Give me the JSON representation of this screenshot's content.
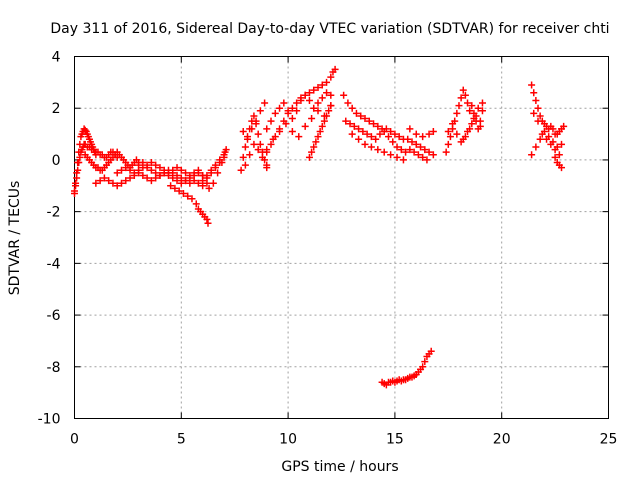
{
  "chart_data": {
    "type": "scatter",
    "title": "Day 311 of 2016, Sidereal Day-to-day VTEC variation (SDTVAR) for receiver chti",
    "xlabel": "GPS time / hours",
    "ylabel": "SDTVAR / TECUs",
    "xlim": [
      0,
      25
    ],
    "ylim": [
      -10,
      4
    ],
    "xticks": [
      0,
      5,
      10,
      15,
      20,
      25
    ],
    "yticks": [
      -10,
      -8,
      -6,
      -4,
      -2,
      0,
      2,
      4
    ],
    "xtick_labels": [
      "0",
      "5",
      "10",
      "15",
      "20",
      "25"
    ],
    "ytick_labels": [
      "-10",
      "-8",
      "-6",
      "-4",
      "-2",
      "0",
      "2",
      "4"
    ],
    "grid": true,
    "marker": "plus",
    "color": "#ff0000",
    "series": [
      {
        "name": "SDTVAR",
        "x": [
          0.0,
          0.05,
          0.1,
          0.15,
          0.2,
          0.25,
          0.3,
          0.35,
          0.4,
          0.45,
          0.5,
          0.55,
          0.6,
          0.65,
          0.7,
          0.75,
          0.8,
          0.85,
          0.9,
          0.95,
          1.0,
          0.0,
          0.05,
          0.1,
          0.15,
          0.2,
          0.25,
          0.3,
          0.35,
          0.4,
          0.45,
          0.5,
          0.6,
          0.7,
          0.8,
          0.9,
          1.0,
          1.1,
          1.2,
          1.3,
          1.4,
          1.5,
          1.6,
          1.7,
          1.8,
          1.9,
          2.0,
          0.5,
          0.6,
          0.7,
          0.8,
          0.9,
          1.0,
          1.1,
          1.2,
          1.3,
          1.4,
          1.5,
          1.6,
          1.7,
          1.8,
          1.9,
          2.0,
          2.1,
          2.2,
          2.3,
          2.4,
          2.5,
          2.6,
          2.7,
          2.8,
          2.9,
          3.0,
          1.0,
          1.2,
          1.4,
          1.6,
          1.8,
          2.0,
          2.2,
          2.4,
          2.6,
          2.8,
          3.0,
          3.2,
          3.4,
          3.6,
          3.8,
          4.0,
          4.2,
          4.4,
          4.6,
          4.8,
          5.0,
          5.2,
          5.4,
          5.6,
          5.8,
          6.0,
          6.2,
          6.4,
          6.6,
          6.8,
          7.0,
          2.0,
          2.2,
          2.4,
          2.6,
          2.8,
          3.0,
          3.2,
          3.4,
          3.6,
          3.8,
          4.0,
          4.2,
          4.4,
          4.6,
          4.8,
          5.0,
          5.2,
          5.4,
          5.6,
          5.8,
          6.0,
          3.0,
          3.2,
          3.4,
          3.6,
          3.8,
          4.0,
          4.2,
          4.4,
          4.6,
          4.8,
          5.0,
          5.2,
          5.4,
          5.6,
          5.8,
          6.0,
          6.2,
          4.5,
          4.7,
          4.9,
          5.1,
          5.3,
          5.5,
          5.7,
          5.8,
          5.9,
          6.0,
          6.1,
          6.2,
          6.25,
          6.0,
          6.2,
          6.4,
          6.6,
          6.8,
          7.0,
          7.1,
          6.3,
          6.5,
          6.7,
          6.9,
          7.05,
          7.9,
          8.0,
          8.1,
          8.2,
          8.3,
          8.4,
          8.5,
          8.6,
          8.7,
          8.8,
          8.9,
          9.0,
          7.8,
          8.0,
          8.2,
          8.4,
          8.6,
          8.8,
          9.0,
          7.9,
          8.1,
          8.3,
          8.5,
          8.7,
          8.9,
          9.0,
          9.2,
          9.4,
          9.6,
          9.8,
          10.0,
          10.2,
          10.4,
          10.6,
          10.8,
          11.0,
          11.2,
          11.4,
          11.6,
          11.8,
          12.0,
          12.1,
          12.2,
          9.0,
          9.2,
          9.4,
          9.6,
          9.8,
          10.0,
          10.2,
          10.4,
          10.6,
          10.8,
          11.0,
          11.2,
          11.4,
          11.6,
          11.8,
          12.0,
          9.0,
          9.3,
          9.6,
          9.9,
          10.2,
          10.5,
          10.8,
          11.1,
          11.4,
          11.7,
          12.0,
          11.0,
          11.1,
          11.2,
          11.3,
          11.4,
          11.5,
          11.6,
          11.7,
          11.8,
          11.9,
          12.0,
          12.6,
          12.8,
          13.0,
          13.2,
          13.4,
          13.6,
          13.8,
          14.0,
          14.2,
          14.4,
          14.6,
          14.8,
          15.0,
          15.2,
          15.4,
          15.6,
          15.8,
          16.0,
          16.2,
          16.4,
          16.6,
          16.8,
          12.7,
          12.9,
          13.1,
          13.3,
          13.5,
          13.7,
          13.9,
          14.1,
          14.3,
          14.5,
          14.7,
          14.9,
          15.1,
          15.3,
          15.5,
          15.7,
          15.9,
          16.1,
          16.3,
          16.5,
          13.0,
          13.3,
          13.6,
          13.9,
          14.2,
          14.5,
          14.8,
          15.1,
          15.4,
          15.7,
          16.0,
          16.3,
          16.6,
          16.8,
          14.4,
          14.5,
          14.6,
          14.7,
          14.8,
          14.9,
          15.0,
          15.1,
          15.2,
          15.3,
          15.4,
          15.5,
          15.6,
          15.7,
          15.8,
          15.9,
          16.0,
          16.1,
          16.2,
          16.3,
          16.4,
          16.5,
          16.6,
          16.7,
          17.4,
          17.5,
          17.6,
          17.7,
          17.8,
          17.9,
          18.0,
          18.1,
          18.2,
          18.3,
          18.4,
          18.5,
          18.6,
          18.7,
          18.8,
          18.9,
          19.0,
          19.1,
          17.5,
          17.7,
          17.9,
          18.1,
          18.3,
          18.5,
          18.7,
          18.9,
          19.1,
          18.2,
          18.4,
          18.6,
          18.8,
          19.0,
          21.4,
          21.5,
          21.6,
          21.7,
          21.8,
          21.9,
          22.0,
          22.1,
          22.2,
          22.3,
          22.4,
          22.5,
          22.6,
          22.7,
          22.8,
          22.9,
          21.4,
          21.6,
          21.8,
          22.0,
          22.2,
          22.4,
          22.6,
          22.8,
          21.5,
          21.7,
          21.9,
          22.1,
          22.3,
          22.5,
          22.7,
          22.5,
          22.6,
          22.7,
          22.8
        ],
        "y": [
          -1.2,
          -0.9,
          -0.5,
          -0.1,
          0.3,
          0.6,
          0.9,
          1.0,
          1.1,
          1.2,
          1.15,
          1.1,
          1.0,
          0.9,
          0.8,
          0.7,
          0.6,
          0.5,
          0.4,
          0.3,
          0.2,
          -1.3,
          -1.0,
          -0.7,
          -0.4,
          -0.1,
          0.1,
          0.3,
          0.4,
          0.5,
          0.6,
          0.6,
          0.5,
          0.5,
          0.4,
          0.4,
          0.3,
          0.3,
          0.2,
          0.2,
          0.1,
          0.1,
          0.2,
          0.3,
          0.3,
          0.2,
          0.1,
          0.2,
          0.1,
          0.0,
          -0.1,
          -0.2,
          -0.3,
          -0.3,
          -0.4,
          -0.4,
          -0.3,
          -0.2,
          -0.1,
          0.0,
          0.1,
          0.2,
          0.3,
          0.2,
          0.1,
          0.0,
          -0.1,
          -0.2,
          -0.3,
          -0.2,
          -0.1,
          0.0,
          -0.1,
          -0.9,
          -0.8,
          -0.7,
          -0.8,
          -0.9,
          -1.0,
          -0.9,
          -0.8,
          -0.7,
          -0.6,
          -0.5,
          -0.6,
          -0.7,
          -0.8,
          -0.7,
          -0.6,
          -0.5,
          -0.6,
          -0.7,
          -0.8,
          -0.9,
          -0.8,
          -0.7,
          -0.6,
          -0.5,
          -0.6,
          -0.7,
          -0.5,
          -0.3,
          -0.1,
          0.1,
          -0.5,
          -0.4,
          -0.3,
          -0.4,
          -0.5,
          -0.4,
          -0.3,
          -0.2,
          -0.1,
          -0.2,
          -0.3,
          -0.4,
          -0.5,
          -0.4,
          -0.3,
          -0.4,
          -0.5,
          -0.6,
          -0.5,
          -0.4,
          -0.6,
          -0.2,
          -0.1,
          -0.3,
          -0.4,
          -0.5,
          -0.6,
          -0.5,
          -0.4,
          -0.5,
          -0.6,
          -0.7,
          -0.8,
          -0.9,
          -0.8,
          -0.9,
          -1.0,
          -0.9,
          -1.0,
          -1.1,
          -1.2,
          -1.3,
          -1.4,
          -1.5,
          -1.7,
          -1.9,
          -2.0,
          -2.1,
          -2.2,
          -2.3,
          -2.45,
          -0.8,
          -0.6,
          -0.4,
          -0.2,
          0.0,
          0.2,
          0.4,
          -1.1,
          -0.9,
          -0.5,
          -0.1,
          0.3,
          0.1,
          0.5,
          0.9,
          1.2,
          1.5,
          1.7,
          1.4,
          1.0,
          0.6,
          0.3,
          0.0,
          -0.3,
          -0.4,
          -0.2,
          0.2,
          0.6,
          0.4,
          0.1,
          -0.2,
          1.1,
          0.8,
          1.2,
          1.5,
          1.9,
          2.2,
          0.3,
          0.6,
          0.9,
          1.2,
          1.5,
          1.8,
          2.0,
          2.2,
          2.4,
          2.5,
          2.6,
          2.7,
          2.8,
          2.9,
          3.0,
          3.2,
          3.4,
          3.5,
          1.2,
          1.5,
          1.8,
          2.0,
          2.2,
          1.9,
          1.6,
          1.9,
          2.3,
          2.5,
          2.3,
          2.0,
          2.2,
          2.4,
          2.6,
          2.5,
          0.4,
          0.8,
          1.1,
          1.4,
          1.1,
          0.9,
          1.3,
          1.6,
          1.9,
          1.7,
          2.1,
          0.1,
          0.3,
          0.5,
          0.7,
          0.9,
          1.1,
          1.3,
          1.5,
          1.7,
          1.9,
          2.1,
          2.5,
          2.2,
          2.0,
          1.8,
          1.7,
          1.6,
          1.5,
          1.4,
          1.3,
          1.2,
          1.2,
          1.1,
          1.0,
          0.9,
          0.8,
          0.8,
          0.7,
          0.6,
          0.5,
          0.4,
          0.3,
          0.2,
          1.5,
          1.4,
          1.3,
          1.2,
          1.1,
          1.0,
          0.9,
          0.8,
          1.0,
          1.1,
          0.9,
          0.7,
          0.5,
          0.4,
          0.3,
          0.4,
          0.3,
          0.2,
          0.1,
          0.0,
          1.0,
          0.8,
          0.6,
          0.5,
          0.4,
          0.3,
          0.2,
          0.1,
          0.0,
          1.2,
          1.0,
          0.9,
          1.0,
          1.1,
          -8.6,
          -8.65,
          -8.7,
          -8.6,
          -8.6,
          -8.55,
          -8.6,
          -8.55,
          -8.5,
          -8.55,
          -8.5,
          -8.5,
          -8.45,
          -8.4,
          -8.4,
          -8.35,
          -8.3,
          -8.2,
          -8.1,
          -8.0,
          -7.8,
          -7.6,
          -7.5,
          -7.4,
          0.3,
          0.6,
          0.9,
          1.2,
          1.5,
          1.8,
          2.1,
          2.4,
          2.7,
          2.5,
          2.2,
          1.9,
          2.1,
          1.8,
          1.5,
          1.2,
          1.5,
          1.9,
          1.1,
          1.4,
          1.0,
          0.7,
          0.9,
          1.2,
          1.6,
          2.0,
          2.2,
          0.8,
          1.1,
          1.4,
          1.7,
          1.3,
          2.9,
          2.6,
          2.3,
          2.0,
          1.7,
          1.5,
          1.4,
          1.3,
          1.2,
          1.3,
          1.2,
          1.0,
          1.0,
          1.1,
          1.2,
          1.3,
          0.2,
          0.5,
          0.8,
          1.1,
          0.9,
          0.7,
          0.5,
          0.6,
          1.8,
          1.5,
          1.0,
          0.8,
          0.6,
          0.4,
          0.2,
          0.1,
          -0.1,
          -0.2,
          -0.3
        ]
      }
    ]
  }
}
